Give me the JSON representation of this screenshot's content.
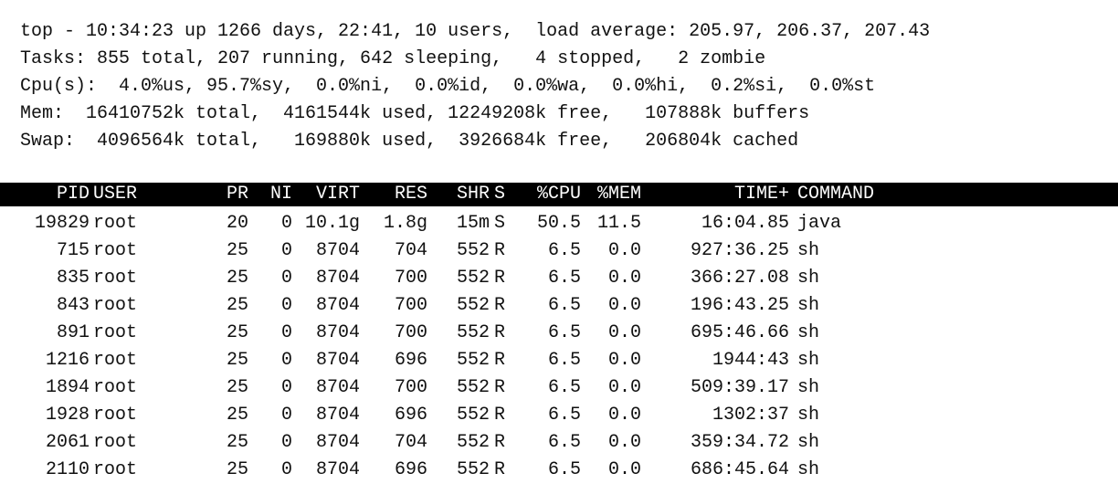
{
  "summary": {
    "line1": "top - 10:34:23 up 1266 days, 22:41, 10 users,  load average: 205.97, 206.37, 207.43",
    "line2": "Tasks: 855 total, 207 running, 642 sleeping,   4 stopped,   2 zombie",
    "line3": "Cpu(s):  4.0%us, 95.7%sy,  0.0%ni,  0.0%id,  0.0%wa,  0.0%hi,  0.2%si,  0.0%st",
    "line4": "Mem:  16410752k total,  4161544k used, 12249208k free,   107888k buffers",
    "line5": "Swap:  4096564k total,   169880k used,  3926684k free,   206804k cached"
  },
  "table": {
    "headers": {
      "pid": "PID",
      "user": "USER",
      "pr": "PR",
      "ni": "NI",
      "virt": "VIRT",
      "res": "RES",
      "shr": "SHR",
      "s": "S",
      "cpu": "%CPU",
      "mem": "%MEM",
      "time": "TIME+",
      "command": "COMMAND"
    },
    "rows": [
      {
        "pid": "19829",
        "user": "root",
        "pr": "20",
        "ni": "0",
        "virt": "10.1g",
        "res": "1.8g",
        "shr": "15m",
        "s": "S",
        "cpu": "50.5",
        "mem": "11.5",
        "time": "16:04.85",
        "command": "java"
      },
      {
        "pid": "715",
        "user": "root",
        "pr": "25",
        "ni": "0",
        "virt": "8704",
        "res": "704",
        "shr": "552",
        "s": "R",
        "cpu": "6.5",
        "mem": "0.0",
        "time": "927:36.25",
        "command": "sh"
      },
      {
        "pid": "835",
        "user": "root",
        "pr": "25",
        "ni": "0",
        "virt": "8704",
        "res": "700",
        "shr": "552",
        "s": "R",
        "cpu": "6.5",
        "mem": "0.0",
        "time": "366:27.08",
        "command": "sh"
      },
      {
        "pid": "843",
        "user": "root",
        "pr": "25",
        "ni": "0",
        "virt": "8704",
        "res": "700",
        "shr": "552",
        "s": "R",
        "cpu": "6.5",
        "mem": "0.0",
        "time": "196:43.25",
        "command": "sh"
      },
      {
        "pid": "891",
        "user": "root",
        "pr": "25",
        "ni": "0",
        "virt": "8704",
        "res": "700",
        "shr": "552",
        "s": "R",
        "cpu": "6.5",
        "mem": "0.0",
        "time": "695:46.66",
        "command": "sh"
      },
      {
        "pid": "1216",
        "user": "root",
        "pr": "25",
        "ni": "0",
        "virt": "8704",
        "res": "696",
        "shr": "552",
        "s": "R",
        "cpu": "6.5",
        "mem": "0.0",
        "time": "1944:43",
        "command": "sh"
      },
      {
        "pid": "1894",
        "user": "root",
        "pr": "25",
        "ni": "0",
        "virt": "8704",
        "res": "700",
        "shr": "552",
        "s": "R",
        "cpu": "6.5",
        "mem": "0.0",
        "time": "509:39.17",
        "command": "sh"
      },
      {
        "pid": "1928",
        "user": "root",
        "pr": "25",
        "ni": "0",
        "virt": "8704",
        "res": "696",
        "shr": "552",
        "s": "R",
        "cpu": "6.5",
        "mem": "0.0",
        "time": "1302:37",
        "command": "sh"
      },
      {
        "pid": "2061",
        "user": "root",
        "pr": "25",
        "ni": "0",
        "virt": "8704",
        "res": "704",
        "shr": "552",
        "s": "R",
        "cpu": "6.5",
        "mem": "0.0",
        "time": "359:34.72",
        "command": "sh"
      },
      {
        "pid": "2110",
        "user": "root",
        "pr": "25",
        "ni": "0",
        "virt": "8704",
        "res": "696",
        "shr": "552",
        "s": "R",
        "cpu": "6.5",
        "mem": "0.0",
        "time": "686:45.64",
        "command": "sh"
      }
    ]
  },
  "colors": {
    "background": "#ffffff",
    "text": "#111111",
    "header_background": "#000000",
    "header_text": "#ffffff"
  }
}
